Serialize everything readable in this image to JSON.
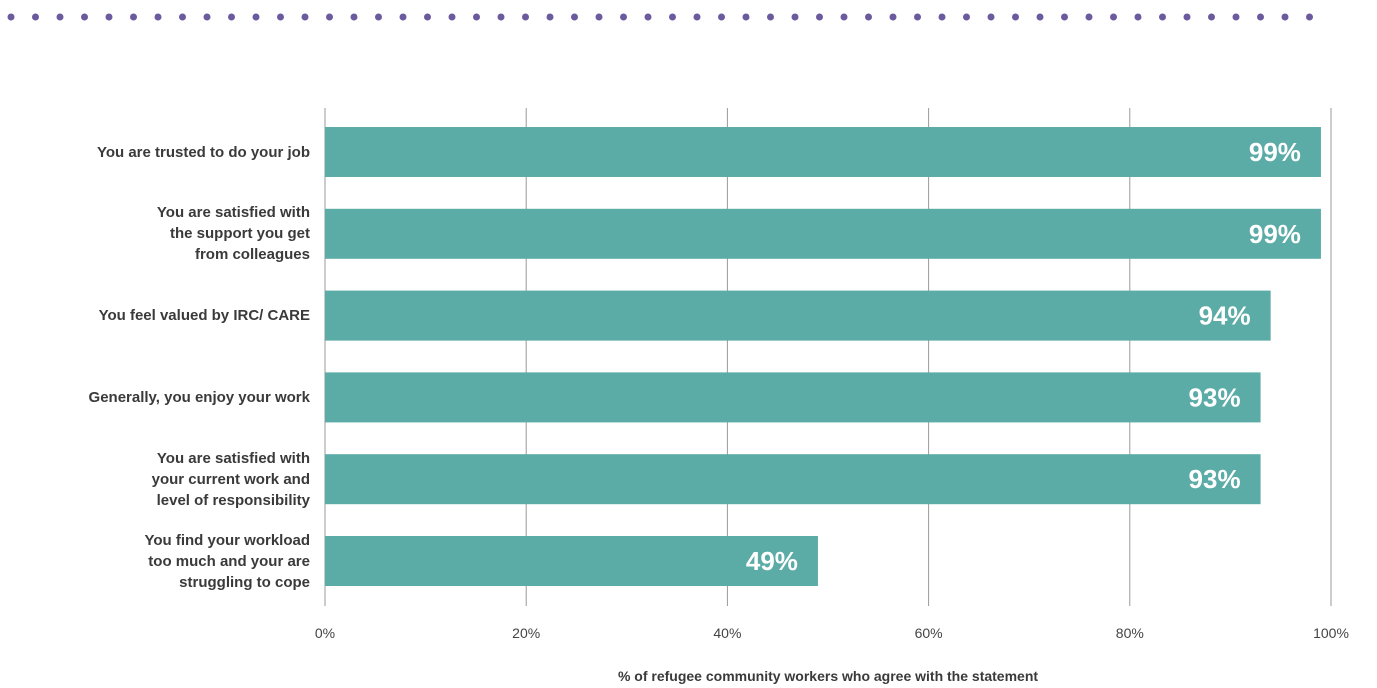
{
  "chart_data": {
    "type": "bar",
    "orientation": "horizontal",
    "categories": [
      "You are trusted to do your job",
      "You are satisfied with\nthe support you get\nfrom colleagues",
      "You feel valued by IRC/ CARE",
      "Generally, you enjoy your work",
      "You are satisfied with\nyour current work and\nlevel of responsibility",
      "You find your workload\ntoo much and your are\nstruggling to cope"
    ],
    "values": [
      99,
      99,
      94,
      93,
      93,
      49
    ],
    "data_labels": [
      "99%",
      "99%",
      "94%",
      "93%",
      "93%",
      "49%"
    ],
    "xlabel": "% of refugee community workers who agree with the statement",
    "xlim": [
      0,
      100
    ],
    "xticks": [
      0,
      20,
      40,
      60,
      80,
      100
    ],
    "xtick_labels": [
      "0%",
      "20%",
      "40%",
      "60%",
      "80%",
      "100%"
    ],
    "grid": true,
    "bar_color": "#5BABA6",
    "dot_color": "#6B5B9E"
  }
}
